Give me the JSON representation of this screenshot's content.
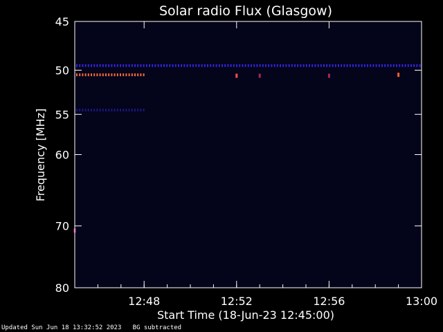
{
  "chart_data": {
    "type": "heatmap",
    "title": "Solar radio Flux (Glasgow)",
    "xlabel": "Start Time (18-Jun-23 12:45:00)",
    "ylabel": "Frequency [MHz]",
    "x_range_minutes": [
      "12:45",
      "13:00"
    ],
    "y_range_mhz": [
      45,
      80
    ],
    "y_ticks": [
      {
        "value": 45,
        "label": "45"
      },
      {
        "value": 50,
        "label": "50"
      },
      {
        "value": 55,
        "label": "55"
      },
      {
        "value": 60,
        "label": "60"
      },
      {
        "value": 70,
        "label": "70"
      },
      {
        "value": 80,
        "label": "80"
      }
    ],
    "x_ticks": [
      {
        "value": "12:48",
        "label": "12:48"
      },
      {
        "value": "12:52",
        "label": "12:52"
      },
      {
        "value": "12:56",
        "label": "12:56"
      },
      {
        "value": "13:00",
        "label": "13:00"
      }
    ],
    "emission_features": [
      {
        "name": "band-49.5MHz",
        "freq_mhz": 49.5,
        "time_start": "12:45",
        "time_end": "13:00",
        "intensity": "medium",
        "color": "#3a2cff"
      },
      {
        "name": "band-50.5MHz-early",
        "freq_mhz": 50.5,
        "time_start": "12:45",
        "time_end": "12:48",
        "intensity": "high",
        "color": "#ff6a3a"
      },
      {
        "name": "band-54.5MHz",
        "freq_mhz": 54.5,
        "time_start": "12:45",
        "time_end": "12:48",
        "intensity": "low",
        "color": "#2a24c8"
      },
      {
        "name": "spot-12:52",
        "freq_mhz": 50.6,
        "time": "12:52",
        "intensity": "high",
        "color": "#ff5050"
      },
      {
        "name": "spot-12:53",
        "freq_mhz": 50.6,
        "time": "12:53",
        "intensity": "medium",
        "color": "#c03060"
      },
      {
        "name": "spot-12:56",
        "freq_mhz": 50.6,
        "time": "12:56",
        "intensity": "medium",
        "color": "#c03060"
      },
      {
        "name": "spot-12:59",
        "freq_mhz": 50.5,
        "time": "12:59",
        "intensity": "high",
        "color": "#ff6030"
      },
      {
        "name": "spot-70.7MHz",
        "freq_mhz": 70.7,
        "time": "12:45",
        "intensity": "high",
        "color": "#c02090"
      }
    ],
    "background_color": "#04041a",
    "axis_color": "#ffffff"
  },
  "footer": {
    "updated": "Updated Sun Jun 18 13:32:52 2023",
    "bg_note": "BG subtracted"
  }
}
